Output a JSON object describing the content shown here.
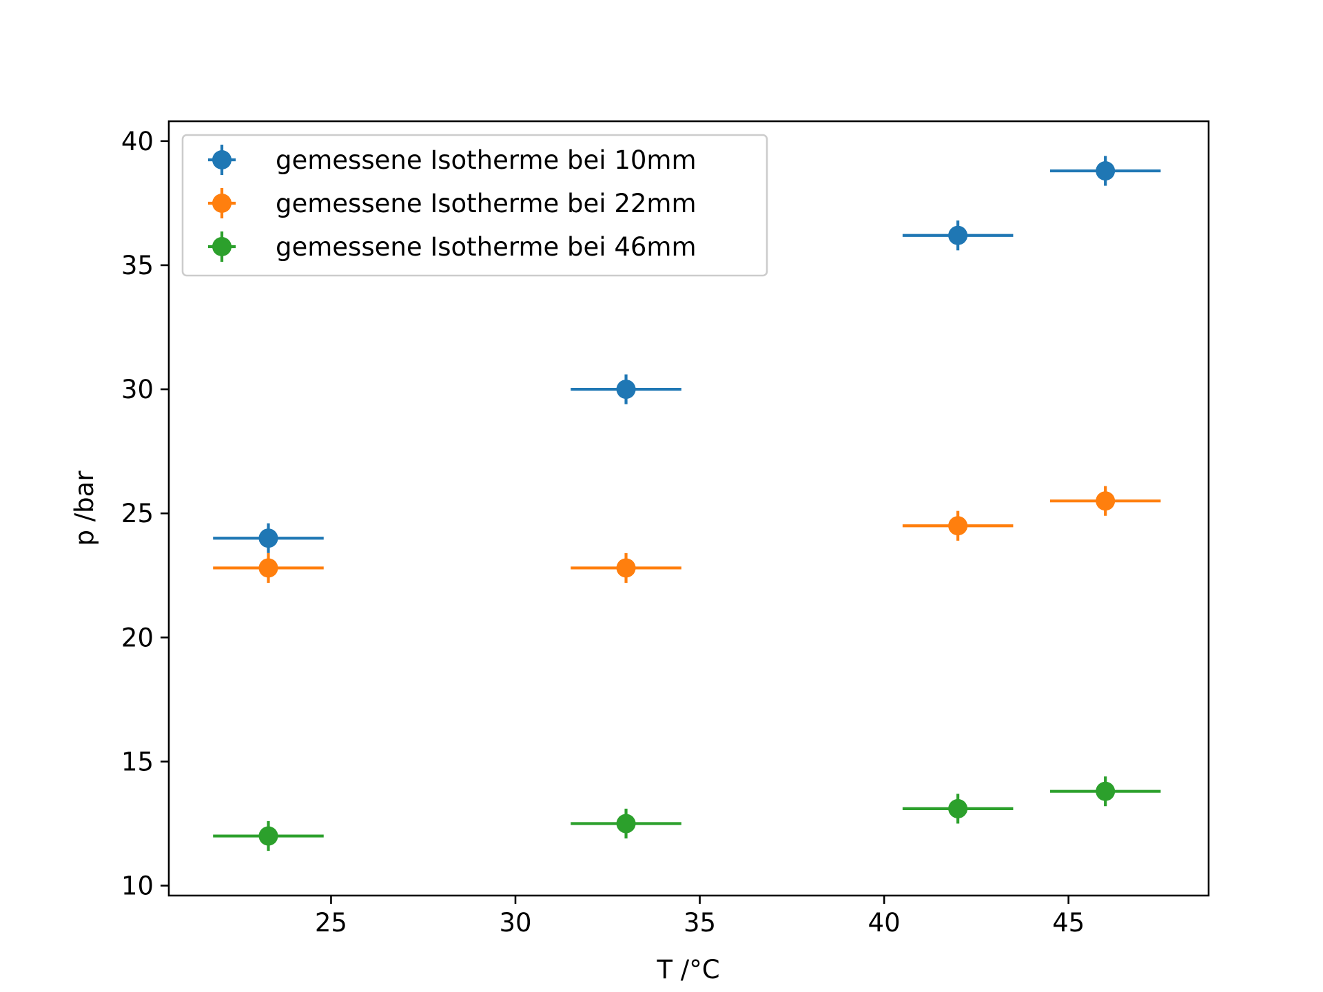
{
  "chart_data": {
    "type": "scatter",
    "title": "",
    "xlabel": "T /°C",
    "ylabel": "p /bar",
    "xlim": [
      20.6,
      48.8
    ],
    "ylim": [
      9.6,
      40.8
    ],
    "xticks": [
      25,
      30,
      35,
      40,
      45
    ],
    "yticks": [
      10,
      15,
      20,
      25,
      30,
      35,
      40
    ],
    "x_error": 1.5,
    "y_error": 0.6,
    "grid": false,
    "legend_position": "top-left",
    "series": [
      {
        "name": "gemessene Isotherme bei 10mm",
        "color": "#1f77b4",
        "x": [
          23.3,
          33.0,
          42.0,
          46.0
        ],
        "y": [
          24.0,
          30.0,
          36.2,
          38.8
        ]
      },
      {
        "name": "gemessene Isotherme bei 22mm",
        "color": "#ff7f0e",
        "x": [
          23.3,
          33.0,
          42.0,
          46.0
        ],
        "y": [
          22.8,
          22.8,
          24.5,
          25.5
        ]
      },
      {
        "name": "gemessene Isotherme bei 46mm",
        "color": "#2ca02c",
        "x": [
          23.3,
          33.0,
          42.0,
          46.0
        ],
        "y": [
          12.0,
          12.5,
          13.1,
          13.8
        ]
      }
    ]
  }
}
